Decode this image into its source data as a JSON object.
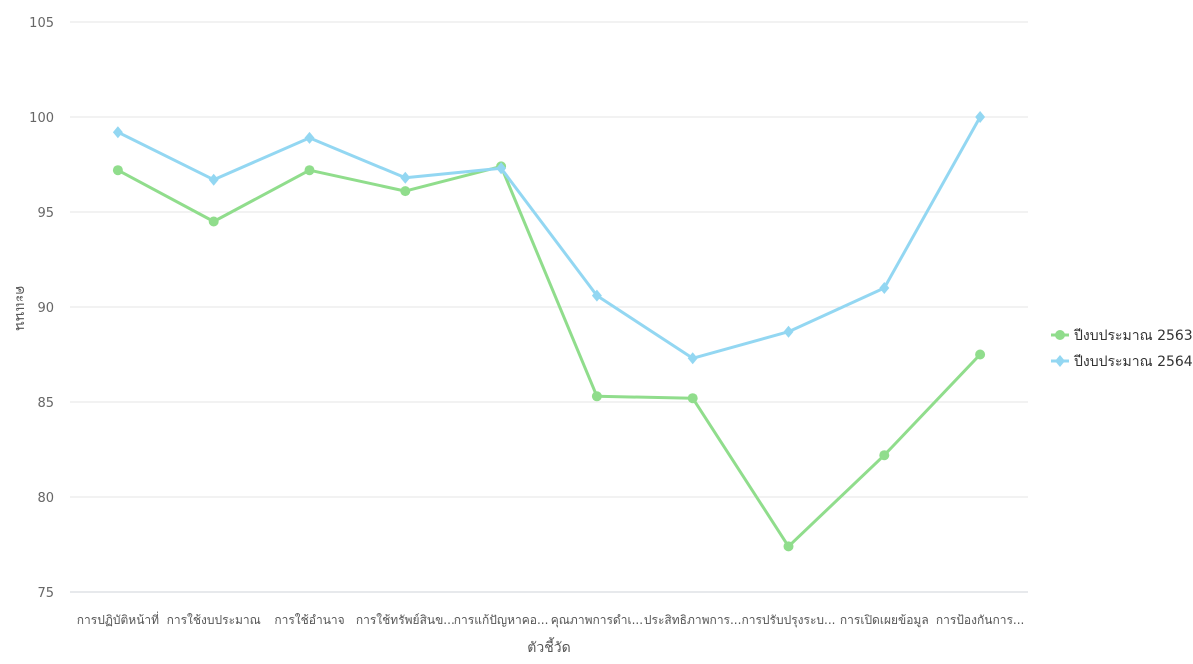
{
  "chart_data": {
    "type": "line",
    "xlabel": "ตัวชี้วัด",
    "ylabel": "คะแนน",
    "ylim": [
      75,
      105
    ],
    "yticks": [
      75,
      80,
      85,
      90,
      95,
      100,
      105
    ],
    "grid": true,
    "legend_position": "right",
    "categories": [
      "การปฏิบัติหน้าที่",
      "การใช้งบประมาณ",
      "การใช้อำนาจ",
      "การใช้ทรัพย์สินข...",
      "การแก้ปัญหาคอ...",
      "คุณภาพการดำเ...",
      "ประสิทธิภาพการ...",
      "การปรับปรุงระบ...",
      "การเปิดเผยข้อมูล",
      "การป้องกันการ..."
    ],
    "series": [
      {
        "name": "ปีงบประมาณ 2563",
        "color": "#90dd8c",
        "marker": "circle",
        "values": [
          97.2,
          94.5,
          97.2,
          96.1,
          97.4,
          85.3,
          85.2,
          77.4,
          82.2,
          87.5
        ]
      },
      {
        "name": "ปีงบประมาณ 2564",
        "color": "#93d7f2",
        "marker": "diamond",
        "values": [
          99.2,
          96.7,
          98.9,
          96.8,
          97.3,
          90.6,
          87.3,
          88.7,
          91.0,
          100.0
        ]
      }
    ]
  }
}
